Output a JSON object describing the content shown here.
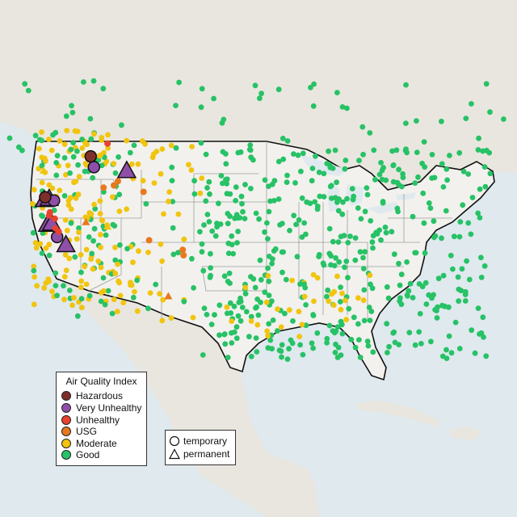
{
  "legend": {
    "title": "Air Quality Index",
    "categories": [
      {
        "label": "Hazardous",
        "color": "#7e2f2a"
      },
      {
        "label": "Very Unhealthy",
        "color": "#8f4fa8"
      },
      {
        "label": "Unhealthy",
        "color": "#e8432e"
      },
      {
        "label": "USG",
        "color": "#e8781e"
      },
      {
        "label": "Moderate",
        "color": "#f1c40f"
      },
      {
        "label": "Good",
        "color": "#27c266"
      }
    ]
  },
  "monitor_types": [
    {
      "label": "temporary",
      "symbol": "circle"
    },
    {
      "label": "permanent",
      "symbol": "triangle"
    }
  ],
  "colors": {
    "water": "#dfe9ee",
    "land_us": "#f2f1ee",
    "land_other": "#e9e6df",
    "border": "#111111",
    "state_lines": "#9e9e9e"
  },
  "monitors": [
    {
      "lon": -123.5,
      "lat": 43.6,
      "aqi": "Very Unhealthy",
      "type": "permanent"
    },
    {
      "lon": -122.9,
      "lat": 43.7,
      "aqi": "Very Unhealthy",
      "type": "permanent"
    },
    {
      "lon": -122.3,
      "lat": 43.5,
      "aqi": "Very Unhealthy",
      "type": "temporary"
    },
    {
      "lon": -123.1,
      "lat": 41.3,
      "aqi": "Very Unhealthy",
      "type": "permanent"
    },
    {
      "lon": -122.6,
      "lat": 41.4,
      "aqi": "Very Unhealthy",
      "type": "permanent"
    },
    {
      "lon": -121.9,
      "lat": 40.1,
      "aqi": "Very Unhealthy",
      "type": "temporary"
    },
    {
      "lon": -120.8,
      "lat": 39.4,
      "aqi": "Very Unhealthy",
      "type": "permanent"
    },
    {
      "lon": -113.2,
      "lat": 46.3,
      "aqi": "Very Unhealthy",
      "type": "permanent"
    },
    {
      "lon": -117.3,
      "lat": 46.6,
      "aqi": "Very Unhealthy",
      "type": "temporary"
    },
    {
      "lon": -117.7,
      "lat": 47.6,
      "aqi": "Hazardous",
      "type": "temporary"
    },
    {
      "lon": -123.4,
      "lat": 43.8,
      "aqi": "Hazardous",
      "type": "temporary"
    },
    {
      "lon": -122.8,
      "lat": 42.4,
      "aqi": "Unhealthy",
      "type": "temporary"
    },
    {
      "lon": -122.9,
      "lat": 42.1,
      "aqi": "Unhealthy",
      "type": "temporary"
    },
    {
      "lon": -122.2,
      "lat": 41.8,
      "aqi": "Unhealthy",
      "type": "temporary"
    },
    {
      "lon": -122.1,
      "lat": 40.9,
      "aqi": "Unhealthy",
      "type": "temporary"
    },
    {
      "lon": -121.7,
      "lat": 40.6,
      "aqi": "Unhealthy",
      "type": "temporary"
    },
    {
      "lon": -115.6,
      "lat": 48.8,
      "aqi": "Unhealthy",
      "type": "temporary"
    },
    {
      "lon": -116.1,
      "lat": 44.7,
      "aqi": "USG",
      "type": "temporary"
    },
    {
      "lon": -114.8,
      "lat": 44.9,
      "aqi": "USG",
      "type": "temporary"
    },
    {
      "lon": -114.3,
      "lat": 45.3,
      "aqi": "USG",
      "type": "temporary"
    },
    {
      "lon": -111.1,
      "lat": 44.3,
      "aqi": "USG",
      "type": "temporary"
    },
    {
      "lon": -110.4,
      "lat": 39.8,
      "aqi": "USG",
      "type": "temporary"
    },
    {
      "lon": -106.2,
      "lat": 38.9,
      "aqi": "USG",
      "type": "temporary"
    },
    {
      "lon": -106.1,
      "lat": 38.4,
      "aqi": "USG",
      "type": "temporary"
    },
    {
      "lon": -118.3,
      "lat": 41.5,
      "aqi": "USG",
      "type": "permanent"
    },
    {
      "lon": -108.0,
      "lat": 34.6,
      "aqi": "USG",
      "type": "permanent"
    },
    {
      "lon": -123.6,
      "lat": 46.3,
      "aqi": "Moderate",
      "type": "permanent"
    },
    {
      "lon": -115.6,
      "lat": 41.1,
      "aqi": "Moderate",
      "type": "permanent"
    }
  ]
}
